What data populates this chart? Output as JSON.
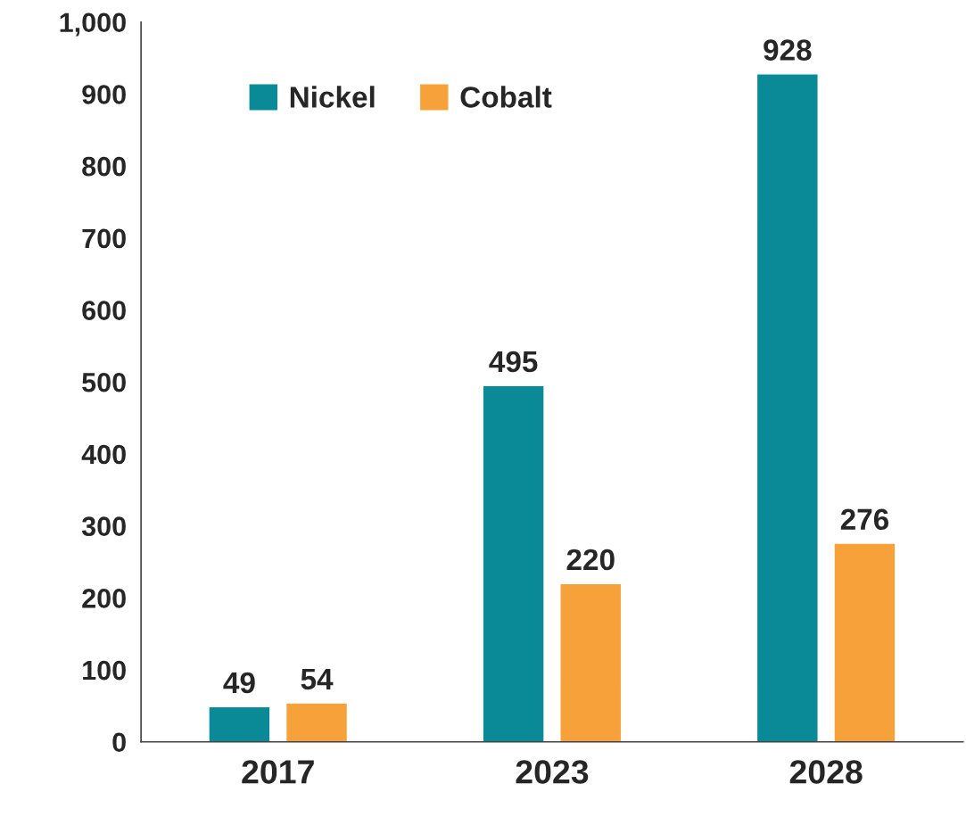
{
  "chart_data": {
    "type": "bar",
    "categories": [
      "2017",
      "2023",
      "2028"
    ],
    "series": [
      {
        "name": "Nickel",
        "color": "#0a8a96",
        "values": [
          49,
          495,
          928
        ]
      },
      {
        "name": "Cobalt",
        "color": "#f7a13a",
        "values": [
          54,
          220,
          276
        ]
      }
    ],
    "ylim": [
      0,
      1000
    ],
    "yticks": [
      0,
      100,
      200,
      300,
      400,
      500,
      600,
      700,
      800,
      900,
      {
        "value": 1000,
        "label": "1,000"
      }
    ],
    "data_labels": true,
    "legend": "top left",
    "grid": false
  }
}
